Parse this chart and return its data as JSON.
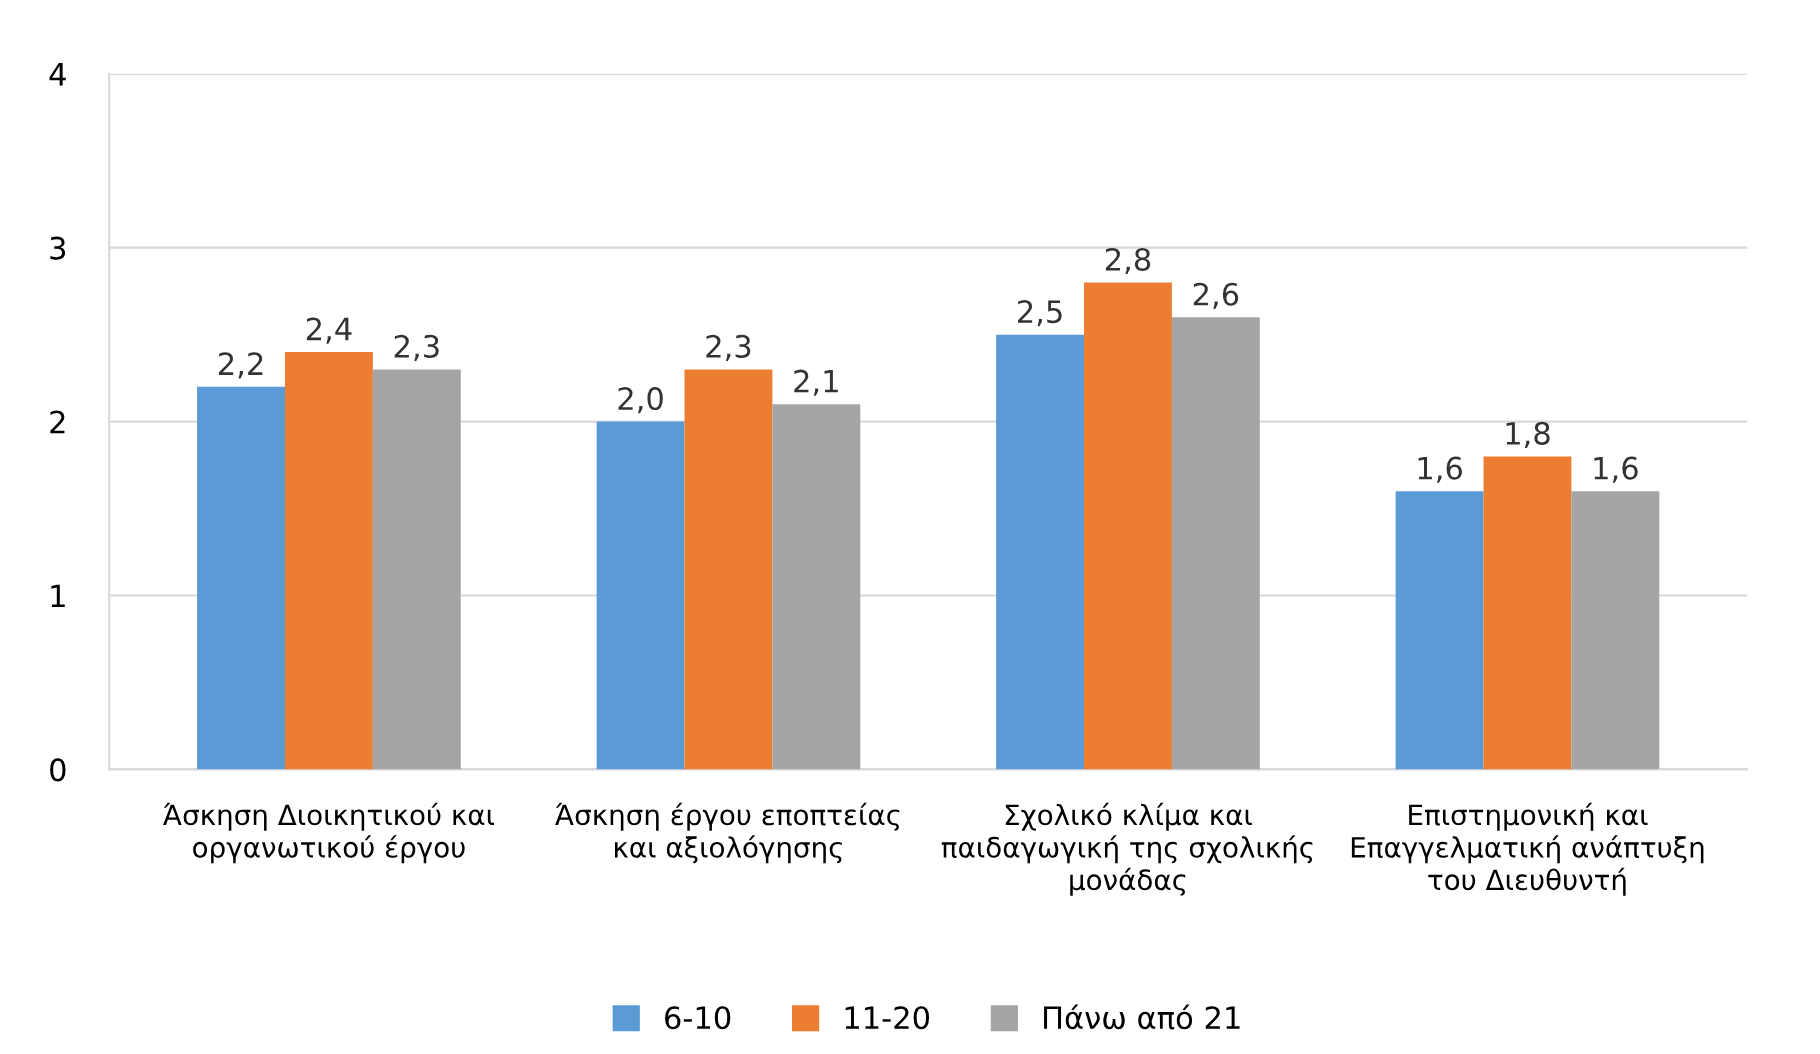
{
  "chart_data": {
    "type": "bar",
    "categories": [
      "Άσκηση Διοικητικού και\nοργανωτικού έργου",
      "Άσκηση έργου εποπτείας\nκαι αξιολόγησης",
      "Σχολικό κλίμα και\nπαιδαγωγική της σχολικής\nμονάδας",
      "Επιστημονική και\nΕπαγγελματική ανάπτυξη\nτου Διευθυντή"
    ],
    "series": [
      {
        "name": "6-10",
        "color": "#5b9bd5",
        "values": [
          2.2,
          2.0,
          2.5,
          1.6
        ],
        "value_labels": [
          "2,2",
          "2,0",
          "2,5",
          "1,6"
        ]
      },
      {
        "name": "11-20",
        "color": "#ed7d31",
        "values": [
          2.4,
          2.3,
          2.8,
          1.8
        ],
        "value_labels": [
          "2,4",
          "2,3",
          "2,8",
          "1,8"
        ]
      },
      {
        "name": "Πάνω από 21",
        "color": "#a5a5a5",
        "values": [
          2.3,
          2.1,
          2.6,
          1.6
        ],
        "value_labels": [
          "2,3",
          "2,1",
          "2,6",
          "1,6"
        ]
      }
    ],
    "ylim": [
      0,
      4
    ],
    "yticks": [
      0,
      1,
      2,
      3,
      4
    ],
    "grid": "y",
    "legend": "bottom"
  }
}
